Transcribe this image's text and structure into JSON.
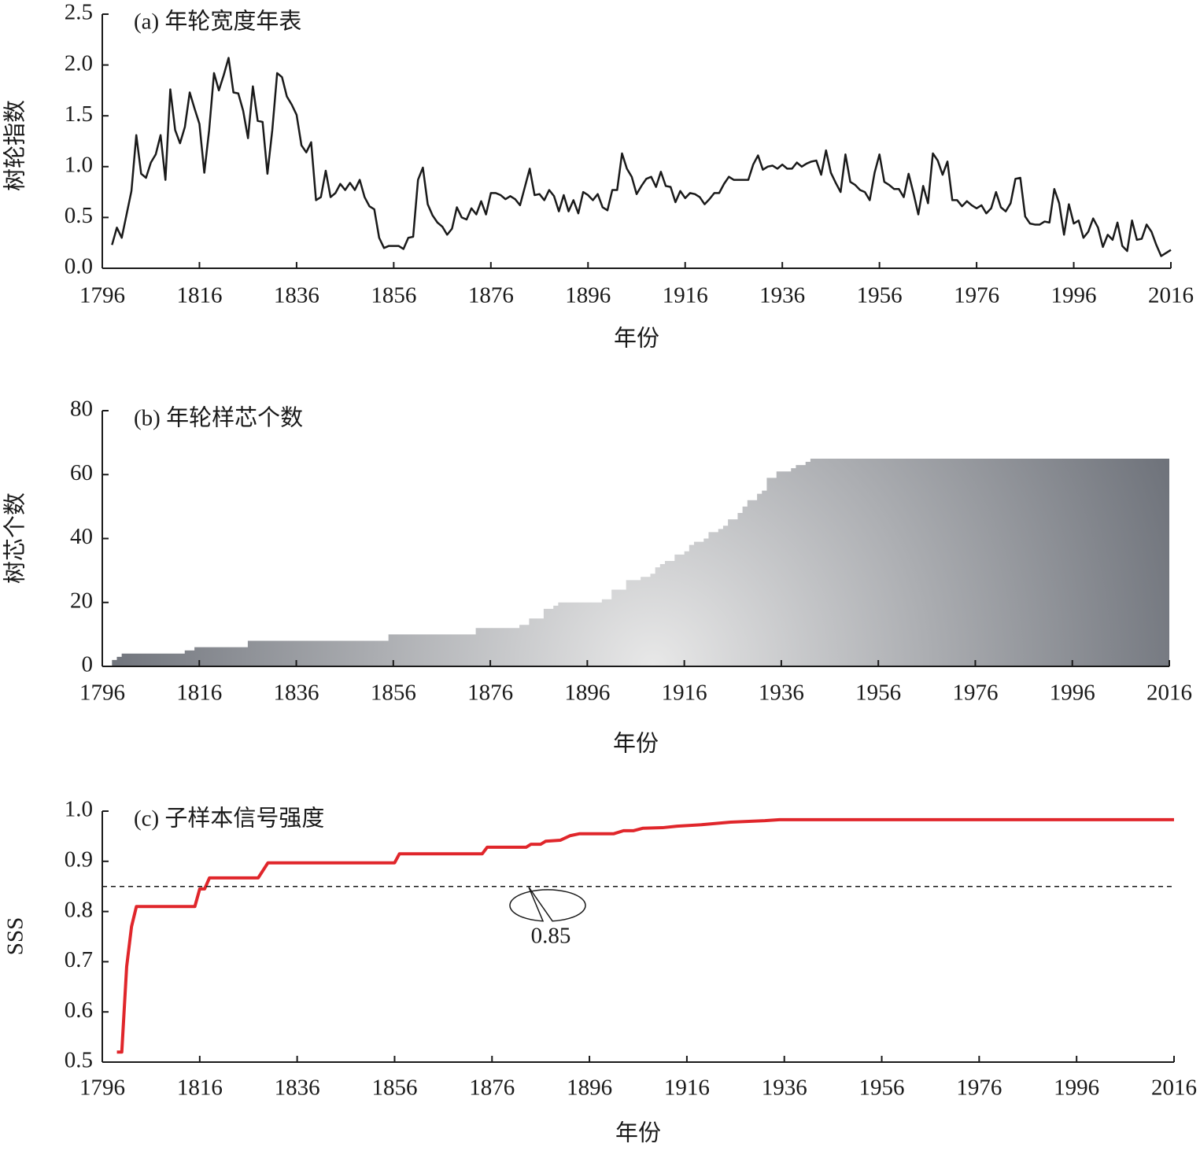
{
  "chart_data": [
    {
      "type": "line",
      "title": "(a) 年轮宽度年表",
      "xlabel": "年份",
      "ylabel": "树轮指数",
      "color": "#1a1a1a",
      "x": [
        1798,
        1799,
        1800,
        1801,
        1802,
        1803,
        1804,
        1805,
        1806,
        1807,
        1808,
        1809,
        1810,
        1811,
        1812,
        1813,
        1814,
        1815,
        1816,
        1817,
        1818,
        1819,
        1820,
        1821,
        1822,
        1823,
        1824,
        1825,
        1826,
        1827,
        1828,
        1829,
        1830,
        1831,
        1832,
        1833,
        1834,
        1835,
        1836,
        1837,
        1838,
        1839,
        1840,
        1841,
        1842,
        1843,
        1844,
        1845,
        1846,
        1847,
        1848,
        1849,
        1850,
        1851,
        1852,
        1853,
        1854,
        1855,
        1856,
        1857,
        1858,
        1859,
        1860,
        1861,
        1862,
        1863,
        1864,
        1865,
        1866,
        1867,
        1868,
        1869,
        1870,
        1871,
        1872,
        1873,
        1874,
        1875,
        1876,
        1877,
        1878,
        1879,
        1880,
        1881,
        1882,
        1883,
        1884,
        1885,
        1886,
        1887,
        1888,
        1889,
        1890,
        1891,
        1892,
        1893,
        1894,
        1895,
        1896,
        1897,
        1898,
        1899,
        1900,
        1901,
        1902,
        1903,
        1904,
        1905,
        1906,
        1907,
        1908,
        1909,
        1910,
        1911,
        1912,
        1913,
        1914,
        1915,
        1916,
        1917,
        1918,
        1919,
        1920,
        1921,
        1922,
        1923,
        1924,
        1925,
        1926,
        1927,
        1928,
        1929,
        1930,
        1931,
        1932,
        1933,
        1934,
        1935,
        1936,
        1937,
        1938,
        1939,
        1940,
        1941,
        1942,
        1943,
        1944,
        1945,
        1946,
        1947,
        1948,
        1949,
        1950,
        1951,
        1952,
        1953,
        1954,
        1955,
        1956,
        1957,
        1958,
        1959,
        1960,
        1961,
        1962,
        1963,
        1964,
        1965,
        1966,
        1967,
        1968,
        1969,
        1970,
        1971,
        1972,
        1973,
        1974,
        1975,
        1976,
        1977,
        1978,
        1979,
        1980,
        1981,
        1982,
        1983,
        1984,
        1985,
        1986,
        1987,
        1988,
        1989,
        1990,
        1991,
        1992,
        1993,
        1994,
        1995,
        1996,
        1997,
        1998,
        1999,
        2000,
        2001,
        2002,
        2003,
        2004,
        2005,
        2006,
        2007,
        2008,
        2009,
        2010,
        2011,
        2012,
        2013,
        2014,
        2015,
        2016
      ],
      "values": [
        0.23,
        0.4,
        0.3,
        0.53,
        0.76,
        1.31,
        0.93,
        0.89,
        1.04,
        1.12,
        1.31,
        0.87,
        1.76,
        1.36,
        1.23,
        1.39,
        1.73,
        1.57,
        1.42,
        0.94,
        1.36,
        1.92,
        1.75,
        1.9,
        2.07,
        1.73,
        1.72,
        1.55,
        1.28,
        1.79,
        1.45,
        1.44,
        0.93,
        1.36,
        1.92,
        1.88,
        1.69,
        1.61,
        1.51,
        1.21,
        1.14,
        1.24,
        0.67,
        0.7,
        0.96,
        0.7,
        0.74,
        0.83,
        0.77,
        0.84,
        0.77,
        0.87,
        0.7,
        0.61,
        0.58,
        0.3,
        0.2,
        0.22,
        0.22,
        0.22,
        0.19,
        0.3,
        0.31,
        0.87,
        0.99,
        0.63,
        0.52,
        0.45,
        0.41,
        0.33,
        0.39,
        0.6,
        0.5,
        0.48,
        0.59,
        0.53,
        0.66,
        0.53,
        0.74,
        0.74,
        0.72,
        0.68,
        0.71,
        0.68,
        0.62,
        0.8,
        0.98,
        0.72,
        0.73,
        0.67,
        0.77,
        0.71,
        0.56,
        0.72,
        0.56,
        0.67,
        0.54,
        0.75,
        0.72,
        0.67,
        0.73,
        0.6,
        0.57,
        0.77,
        0.77,
        1.13,
        0.98,
        0.9,
        0.73,
        0.81,
        0.88,
        0.9,
        0.8,
        0.95,
        0.81,
        0.8,
        0.65,
        0.76,
        0.69,
        0.74,
        0.73,
        0.7,
        0.63,
        0.68,
        0.74,
        0.74,
        0.83,
        0.9,
        0.87,
        0.87,
        0.87,
        0.87,
        1.02,
        1.11,
        0.97,
        1.0,
        1.01,
        0.98,
        1.02,
        0.98,
        0.98,
        1.04,
        1.0,
        1.03,
        1.05,
        1.06,
        0.92,
        1.16,
        0.94,
        0.84,
        0.75,
        1.12,
        0.85,
        0.82,
        0.77,
        0.75,
        0.67,
        0.94,
        1.12,
        0.85,
        0.82,
        0.78,
        0.78,
        0.7,
        0.93,
        0.74,
        0.53,
        0.81,
        0.64,
        1.13,
        1.06,
        0.92,
        1.05,
        0.67,
        0.67,
        0.61,
        0.66,
        0.62,
        0.59,
        0.62,
        0.54,
        0.59,
        0.75,
        0.6,
        0.56,
        0.64,
        0.88,
        0.89,
        0.51,
        0.44,
        0.43,
        0.43,
        0.46,
        0.45,
        0.78,
        0.64,
        0.33,
        0.63,
        0.44,
        0.47,
        0.3,
        0.36,
        0.49,
        0.4,
        0.21,
        0.33,
        0.28,
        0.45,
        0.22,
        0.17,
        0.47,
        0.28,
        0.29,
        0.43,
        0.36,
        0.23,
        0.12,
        0.15,
        0.18
      ],
      "xlim": [
        1796,
        2016
      ],
      "xticks": [
        1796,
        1816,
        1836,
        1856,
        1876,
        1896,
        1916,
        1936,
        1956,
        1976,
        1996,
        2016
      ],
      "ylim": [
        0,
        2.5
      ],
      "yticks": [
        {
          "value": 0,
          "label": "0.0"
        },
        0.5,
        {
          "value": 1,
          "label": "1.0"
        },
        1.5,
        {
          "value": 2,
          "label": "2.0"
        },
        2.5
      ]
    },
    {
      "type": "area",
      "drawstyle": "steps-post",
      "title": "(b) 年轮样芯个数",
      "xlabel": "年份",
      "ylabel": "树芯个数",
      "gradient": [
        "#e8e8e8",
        "#6f737b"
      ],
      "x": [
        1797,
        1798,
        1799,
        1800,
        1813,
        1815,
        1826,
        1855,
        1873,
        1882,
        1884,
        1887,
        1889,
        1890,
        1899,
        1901,
        1904,
        1907,
        1909,
        1910,
        1911,
        1912,
        1914,
        1916,
        1917,
        1918,
        1920,
        1921,
        1923,
        1924,
        1925,
        1927,
        1928,
        1929,
        1931,
        1932,
        1933,
        1935,
        1938,
        1939,
        1941,
        1942,
        2016
      ],
      "values": [
        0,
        2,
        3,
        4,
        5,
        6,
        8,
        10,
        12,
        13,
        15,
        18,
        19,
        20,
        21,
        24,
        27,
        28,
        29,
        31,
        32,
        33,
        35,
        36,
        38,
        39,
        40,
        42,
        43,
        44,
        46,
        48,
        50,
        52,
        54,
        55,
        59,
        61,
        62,
        63,
        64,
        65,
        65
      ],
      "xlim": [
        1796,
        2016
      ],
      "xticks": [
        1796,
        1816,
        1836,
        1856,
        1876,
        1896,
        1916,
        1936,
        1956,
        1976,
        1996,
        2016
      ],
      "ylim": [
        0,
        80
      ],
      "yticks": [
        0,
        20,
        40,
        60,
        80
      ]
    },
    {
      "type": "line",
      "title": "(c) 子样本信号强度",
      "xlabel": "年份",
      "ylabel": "SSS",
      "color": "#e0262b",
      "threshold": 0.85,
      "x": [
        1799,
        1800,
        1801,
        1802,
        1803,
        1815,
        1816,
        1817,
        1818,
        1828,
        1830,
        1856,
        1857,
        1874,
        1875,
        1883,
        1884,
        1886,
        1887,
        1890,
        1892,
        1894,
        1901,
        1903,
        1905,
        1907,
        1911,
        1914,
        1919,
        1925,
        1932,
        1935,
        2016
      ],
      "values": [
        0.52,
        0.52,
        0.69,
        0.77,
        0.81,
        0.81,
        0.845,
        0.845,
        0.867,
        0.867,
        0.897,
        0.897,
        0.915,
        0.915,
        0.928,
        0.928,
        0.934,
        0.934,
        0.94,
        0.942,
        0.951,
        0.955,
        0.955,
        0.961,
        0.961,
        0.966,
        0.967,
        0.97,
        0.973,
        0.978,
        0.981,
        0.983,
        0.983
      ],
      "xlim": [
        1796,
        2016
      ],
      "xticks": [
        1796,
        1816,
        1836,
        1856,
        1876,
        1896,
        1916,
        1936,
        1956,
        1976,
        1996,
        2016
      ],
      "ylim": [
        0.5,
        1
      ],
      "yticks": [
        0.5,
        0.6,
        0.7,
        0.8,
        0.9,
        {
          "value": 1,
          "label": "1.0"
        }
      ]
    }
  ]
}
